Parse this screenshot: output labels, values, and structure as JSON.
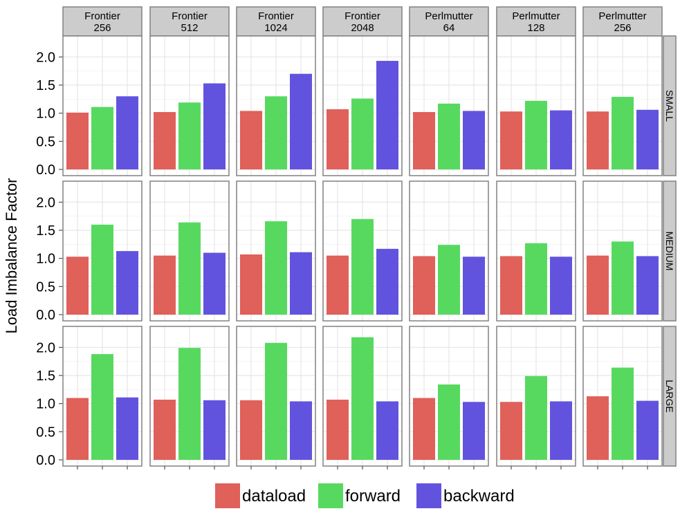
{
  "chart_data": {
    "type": "bar",
    "ylabel": "Load Imbalance Factor",
    "xlabel": "",
    "ylim": [
      0,
      2.25
    ],
    "yticks": [
      "0.0",
      "0.5",
      "1.0",
      "1.5",
      "2.0"
    ],
    "grid": true,
    "legend_position": "bottom",
    "series_names": [
      "dataload",
      "forward",
      "backward"
    ],
    "colors": {
      "dataload": "#E0605A",
      "forward": "#57D960",
      "backward": "#6253DF",
      "strip_fill": "#CCCCCC",
      "panel_border": "#808080",
      "grid": "#E6E6E6"
    },
    "columns": [
      {
        "line1": "Frontier",
        "line2": "256"
      },
      {
        "line1": "Frontier",
        "line2": "512"
      },
      {
        "line1": "Frontier",
        "line2": "1024"
      },
      {
        "line1": "Frontier",
        "line2": "2048"
      },
      {
        "line1": "Perlmutter",
        "line2": "64"
      },
      {
        "line1": "Perlmutter",
        "line2": "128"
      },
      {
        "line1": "Perlmutter",
        "line2": "256"
      }
    ],
    "rows": [
      {
        "label": "SMALL",
        "values": [
          [
            1.01,
            1.11,
            1.3
          ],
          [
            1.02,
            1.19,
            1.53
          ],
          [
            1.04,
            1.3,
            1.7
          ],
          [
            1.07,
            1.26,
            1.93
          ],
          [
            1.02,
            1.17,
            1.04
          ],
          [
            1.03,
            1.22,
            1.05
          ],
          [
            1.03,
            1.29,
            1.06
          ]
        ]
      },
      {
        "label": "MEDIUM",
        "values": [
          [
            1.03,
            1.6,
            1.13
          ],
          [
            1.05,
            1.64,
            1.1
          ],
          [
            1.07,
            1.66,
            1.11
          ],
          [
            1.05,
            1.7,
            1.17
          ],
          [
            1.04,
            1.24,
            1.03
          ],
          [
            1.04,
            1.27,
            1.03
          ],
          [
            1.05,
            1.3,
            1.04
          ]
        ]
      },
      {
        "label": "LARGE",
        "values": [
          [
            1.1,
            1.88,
            1.11
          ],
          [
            1.07,
            1.99,
            1.06
          ],
          [
            1.06,
            2.08,
            1.04
          ],
          [
            1.07,
            2.18,
            1.04
          ],
          [
            1.1,
            1.34,
            1.03
          ],
          [
            1.03,
            1.49,
            1.04
          ],
          [
            1.13,
            1.64,
            1.05
          ]
        ]
      }
    ]
  }
}
